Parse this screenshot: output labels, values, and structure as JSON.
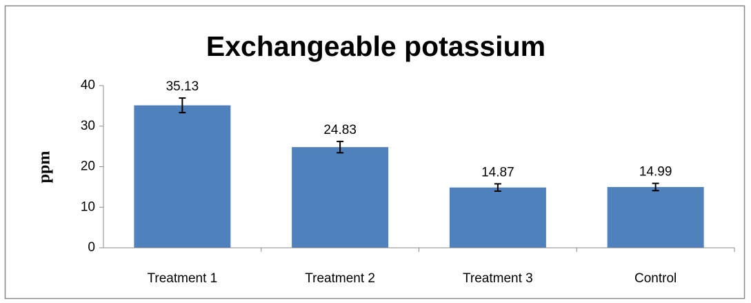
{
  "chart_data": {
    "type": "bar",
    "title": "Exchangeable potassium",
    "y_label": "ppm",
    "categories": [
      "Treatment 1",
      "Treatment 2",
      "Treatment 3",
      "Control"
    ],
    "values": [
      35.13,
      24.83,
      14.87,
      14.99
    ],
    "errors": [
      1.8,
      1.4,
      0.9,
      0.9
    ],
    "color": "#4f81bd",
    "ylim": [
      0,
      40
    ],
    "yticks": [
      0,
      10,
      20,
      30,
      40
    ],
    "grid": false
  }
}
